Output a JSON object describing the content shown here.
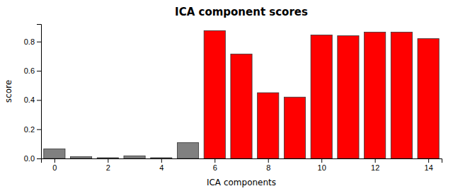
{
  "chart_data": {
    "type": "bar",
    "title": "ICA component scores",
    "x_label": "ICA components",
    "y_label": "score",
    "x": [
      0,
      1,
      2,
      3,
      4,
      5,
      6,
      7,
      8,
      9,
      10,
      11,
      12,
      13,
      14
    ],
    "values": [
      0.065,
      0.012,
      0.005,
      0.018,
      0.005,
      0.108,
      0.875,
      0.715,
      0.45,
      0.42,
      0.845,
      0.84,
      0.865,
      0.865,
      0.82
    ],
    "colors": [
      "#808080",
      "#808080",
      "#808080",
      "#808080",
      "#808080",
      "#808080",
      "#ff0000",
      "#ff0000",
      "#ff0000",
      "#ff0000",
      "#ff0000",
      "#ff0000",
      "#ff0000",
      "#ff0000",
      "#ff0000"
    ],
    "xlim": [
      -0.5,
      14.5
    ],
    "xticks": [
      0,
      2,
      4,
      6,
      8,
      10,
      12,
      14
    ],
    "ylim": [
      0,
      0.92
    ],
    "yticks": [
      {
        "value": 0,
        "label": "0.0"
      },
      0.2,
      0.4,
      0.6,
      0.8
    ],
    "grid": false
  }
}
